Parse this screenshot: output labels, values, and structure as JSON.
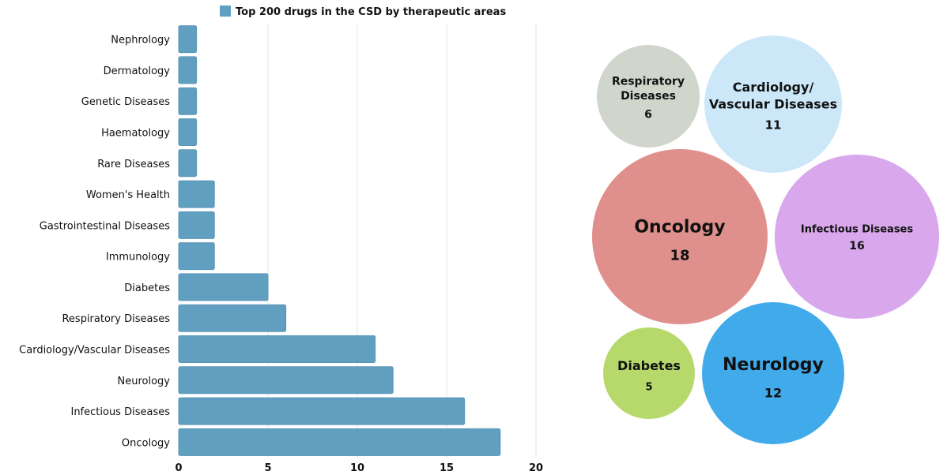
{
  "chart_data": [
    {
      "type": "bar",
      "orientation": "horizontal",
      "legend": {
        "label": "Top 200 drugs in the CSD by therapeutic areas",
        "placement": "top"
      },
      "categories": [
        "Nephrology",
        "Dermatology",
        "Genetic Diseases",
        "Haematology",
        "Rare Diseases",
        "Women's Health",
        "Gastrointestinal Diseases",
        "Immunology",
        "Diabetes",
        "Respiratory Diseases",
        "Cardiology/Vascular Diseases",
        "Neurology",
        "Infectious Diseases",
        "Oncology"
      ],
      "values": [
        1,
        1,
        1,
        1,
        1,
        2,
        2,
        2,
        5,
        6,
        11,
        12,
        16,
        18
      ],
      "xlim": [
        0,
        20
      ],
      "xticks": [
        "0",
        "5",
        "10",
        "15",
        "20"
      ],
      "grid": true,
      "color": "#619fc1"
    },
    {
      "type": "bubble",
      "bubbles": [
        {
          "label": "Respiratory Diseases",
          "lines": [
            "Respiratory",
            "Diseases"
          ],
          "value": "6",
          "color": "#d0d6cc"
        },
        {
          "label": "Cardiology/Vascular Diseases",
          "lines": [
            "Cardiology/",
            "Vascular Diseases"
          ],
          "value": "11",
          "color": "#cce8f8"
        },
        {
          "label": "Oncology",
          "lines": [
            "Oncology"
          ],
          "value": "18",
          "color": "#e0908c"
        },
        {
          "label": "Infectious Diseases",
          "lines": [
            "Infectious Diseases"
          ],
          "value": "16",
          "color": "#d9a8ec"
        },
        {
          "label": "Diabetes",
          "lines": [
            "Diabetes"
          ],
          "value": "5",
          "color": "#b7d96c"
        },
        {
          "label": "Neurology",
          "lines": [
            "Neurology"
          ],
          "value": "12",
          "color": "#41aaea"
        }
      ]
    }
  ]
}
